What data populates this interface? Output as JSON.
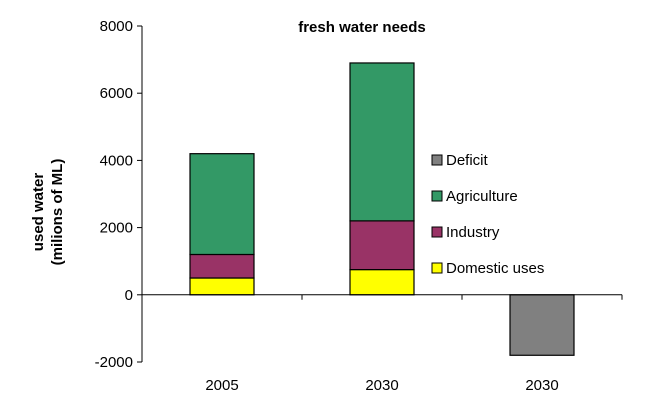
{
  "chart_data": {
    "type": "bar",
    "stacked": true,
    "title": "fresh water needs",
    "xlabel": "",
    "ylabel_lines": [
      "used water",
      "(milions of ML)"
    ],
    "categories": [
      "2005",
      "2030",
      "2030"
    ],
    "ylim": [
      -2000,
      8000
    ],
    "yticks": [
      8000,
      6000,
      4000,
      2000,
      0,
      -2000
    ],
    "ytick_labels": [
      "8000",
      "6000",
      "4000",
      "2000",
      "0",
      "-2000"
    ],
    "grid": false,
    "legend_position": "right",
    "series": [
      {
        "name": "Domestic uses",
        "color": "#ffff00",
        "values": [
          500,
          750,
          0
        ]
      },
      {
        "name": "Industry",
        "color": "#993366",
        "values": [
          700,
          1450,
          0
        ]
      },
      {
        "name": "Agriculture",
        "color": "#339966",
        "values": [
          3000,
          4700,
          0
        ]
      },
      {
        "name": "Deficit",
        "color": "#808080",
        "values": [
          0,
          0,
          -1800
        ]
      }
    ],
    "legend_order": [
      "Deficit",
      "Agriculture",
      "Industry",
      "Domestic uses"
    ]
  }
}
